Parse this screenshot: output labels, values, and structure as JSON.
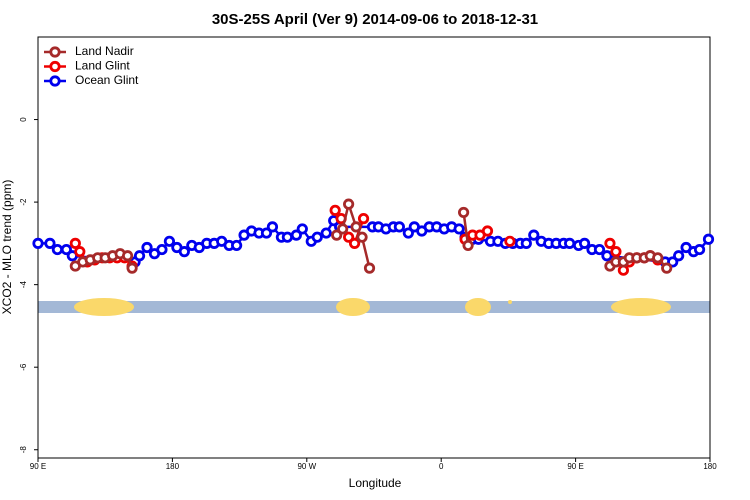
{
  "chart_data": {
    "type": "line",
    "title": "30S-25S April (Ver 9)   2014-09-06 to 2018-12-31",
    "x_label": "Longitude",
    "y_label": "XCO2 - MLO trend (ppm)",
    "xlim": [
      90,
      540
    ],
    "ylim": [
      -8.2,
      2.0
    ],
    "xticks": [
      {
        "value": 90,
        "label": "90 E"
      },
      180,
      {
        "value": 270,
        "label": "90 W"
      },
      {
        "value": 360,
        "label": "0"
      },
      {
        "value": 450,
        "label": "90 E"
      },
      {
        "value": 540,
        "label": "180"
      }
    ],
    "yticks": [
      0,
      -2,
      -4,
      -6,
      -8
    ],
    "legend": "top-left",
    "series": [
      {
        "name": "Land Nadir",
        "color": "#a52a2a",
        "x": [
          115,
          120,
          125,
          130,
          135,
          140,
          145,
          150,
          153,
          null,
          290,
          294,
          298,
          303,
          307,
          312,
          null,
          375,
          378,
          null,
          473,
          477,
          482,
          486,
          491,
          496,
          500,
          505,
          511
        ],
        "values": [
          -3.55,
          -3.45,
          -3.4,
          -3.35,
          -3.35,
          -3.3,
          -3.25,
          -3.3,
          -3.6,
          null,
          -2.8,
          -2.65,
          -2.05,
          -2.6,
          -2.85,
          -3.6,
          null,
          -2.25,
          -3.05,
          null,
          -3.55,
          -3.45,
          -3.45,
          -3.35,
          -3.35,
          -3.35,
          -3.3,
          -3.35,
          -3.6
        ]
      },
      {
        "name": "Land Glint",
        "color": "#ee0000",
        "x": [
          115,
          118,
          123,
          128,
          133,
          138,
          143,
          148,
          153,
          null,
          289,
          293,
          298,
          302,
          308,
          null,
          376,
          381,
          386,
          391,
          null,
          406,
          null,
          473,
          477,
          482,
          486,
          491,
          496,
          500,
          505
        ],
        "values": [
          -3.0,
          -3.2,
          -3.45,
          -3.4,
          -3.35,
          -3.35,
          -3.35,
          -3.35,
          -3.55,
          null,
          -2.2,
          -2.4,
          -2.85,
          -3.0,
          -2.4,
          null,
          -2.9,
          -2.8,
          -2.8,
          -2.7,
          null,
          -2.95,
          null,
          -3.0,
          -3.2,
          -3.65,
          -3.45,
          -3.35,
          -3.35,
          -3.3,
          -3.4
        ]
      },
      {
        "name": "Ocean Glint",
        "color": "#0000ee",
        "x": [
          90,
          98,
          103,
          109,
          113,
          155,
          158,
          163,
          168,
          173,
          178,
          183,
          188,
          193,
          198,
          203,
          208,
          213,
          218,
          223,
          228,
          233,
          238,
          243,
          247,
          253,
          257,
          263,
          267,
          273,
          277,
          283,
          288,
          292,
          314,
          318,
          323,
          328,
          332,
          338,
          342,
          347,
          352,
          357,
          362,
          367,
          372,
          376,
          381,
          385,
          393,
          398,
          403,
          408,
          413,
          417,
          422,
          427,
          432,
          437,
          442,
          446,
          452,
          456,
          461,
          466,
          471,
          510,
          515,
          519,
          524,
          529,
          533,
          539
        ],
        "values": [
          -3.0,
          -3.0,
          -3.15,
          -3.15,
          -3.3,
          -3.45,
          -3.3,
          -3.1,
          -3.25,
          -3.15,
          -2.95,
          -3.1,
          -3.2,
          -3.05,
          -3.1,
          -3.0,
          -3.0,
          -2.95,
          -3.05,
          -3.05,
          -2.8,
          -2.7,
          -2.75,
          -2.75,
          -2.6,
          -2.85,
          -2.85,
          -2.8,
          -2.65,
          -2.95,
          -2.85,
          -2.75,
          -2.45,
          -2.6,
          -2.6,
          -2.6,
          -2.65,
          -2.6,
          -2.6,
          -2.75,
          -2.6,
          -2.7,
          -2.6,
          -2.6,
          -2.65,
          -2.6,
          -2.65,
          -2.85,
          -2.9,
          -2.9,
          -2.95,
          -2.95,
          -3.0,
          -3.0,
          -3.0,
          -3.0,
          -2.8,
          -2.95,
          -3.0,
          -3.0,
          -3.0,
          -3.0,
          -3.05,
          -3.0,
          -3.15,
          -3.15,
          -3.3,
          -3.45,
          -3.45,
          -3.3,
          -3.1,
          -3.2,
          -3.15,
          -2.9
        ]
      }
    ]
  }
}
